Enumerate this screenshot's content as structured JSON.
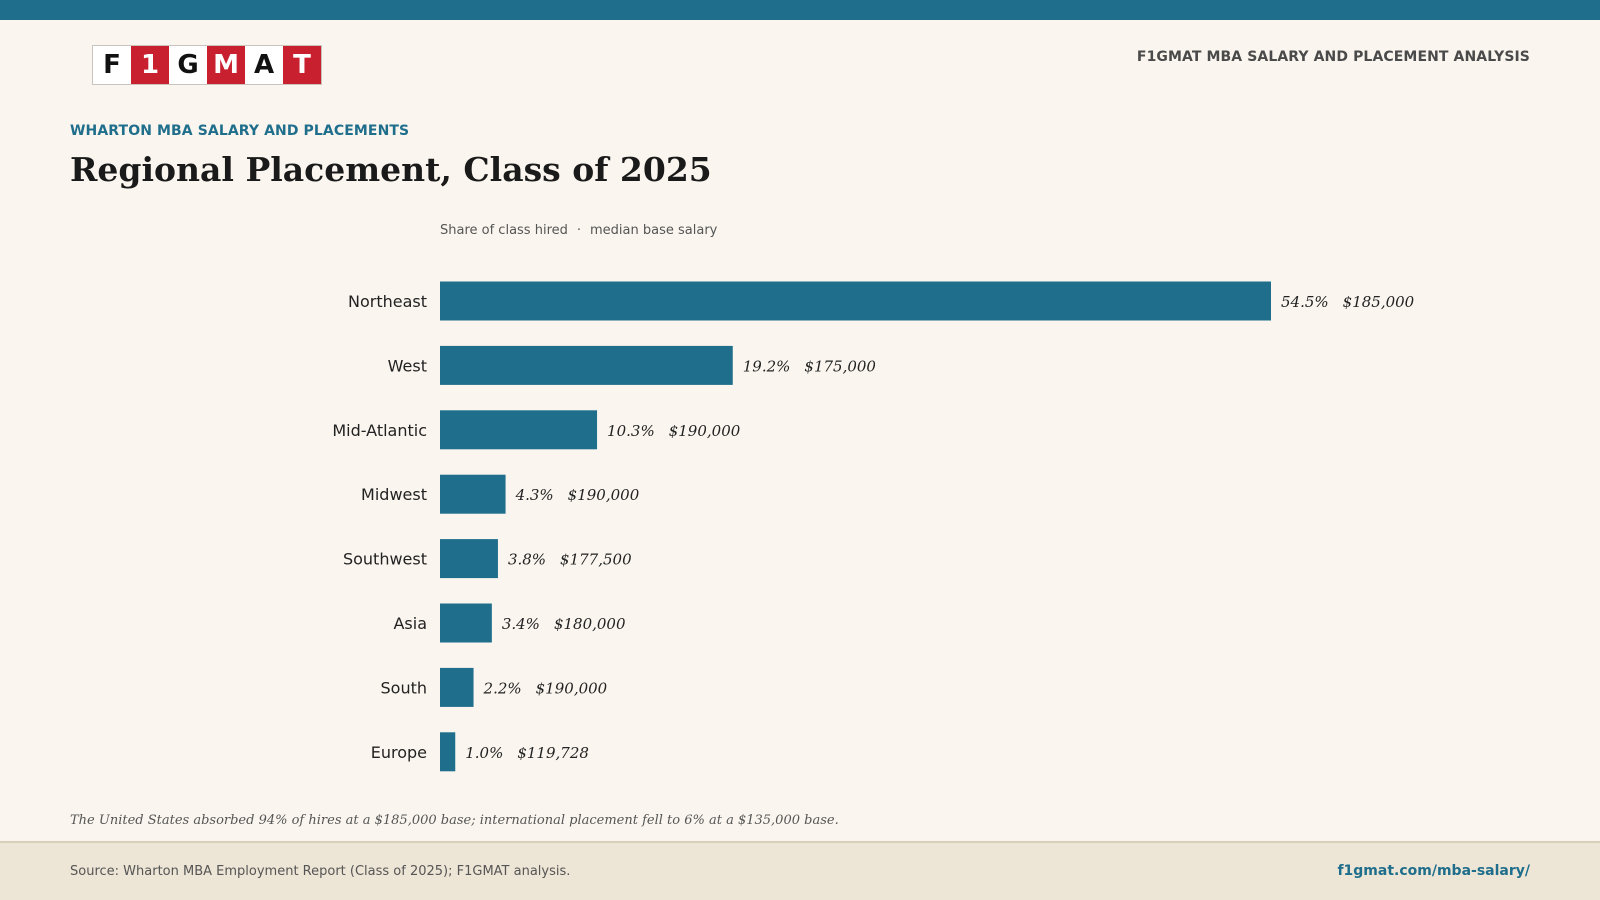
{
  "header": {
    "logo_letters": [
      "F",
      "1",
      "G",
      "M",
      "A",
      "T"
    ],
    "right_label": "F1GMAT MBA SALARY AND PLACEMENT ANALYSIS"
  },
  "kicker": "WHARTON MBA SALARY AND PLACEMENTS",
  "title": "Regional Placement, Class of 2025",
  "legend": {
    "share_label": "Share of class hired",
    "separator": "·",
    "salary_label": "median base salary"
  },
  "chart_data": {
    "type": "bar",
    "orientation": "horizontal",
    "title": "Regional Placement, Class of 2025",
    "categories": [
      "Northeast",
      "West",
      "Mid-Atlantic",
      "Midwest",
      "Southwest",
      "Asia",
      "South",
      "Europe"
    ],
    "series": [
      {
        "name": "Share of class hired",
        "values": [
          54.5,
          19.2,
          10.3,
          4.3,
          3.8,
          3.4,
          2.2,
          1.0
        ]
      },
      {
        "name": "median base salary",
        "values": [
          185000,
          175000,
          190000,
          190000,
          177500,
          180000,
          190000,
          119728
        ]
      }
    ],
    "share_labels": [
      "54.5%",
      "19.2%",
      "10.3%",
      "4.3%",
      "3.8%",
      "3.4%",
      "2.2%",
      "1.0%"
    ],
    "salary_labels": [
      "$185,000",
      "$175,000",
      "$190,000",
      "$190,000",
      "$177,500",
      "$180,000",
      "$190,000",
      "$119,728"
    ],
    "bar_color": "#1f6e8c"
  },
  "note": "The United States absorbed 94% of hires at a $185,000 base; international placement fell to 6% at a $135,000 base.",
  "footer": {
    "source": "Source: Wharton MBA Employment Report (Class of 2025); F1GMAT analysis.",
    "url": "f1gmat.com/mba-salary/"
  },
  "colors": {
    "accent": "#1f6e8c",
    "logo_red": "#c8202f",
    "background": "#faf6ef",
    "footer_background": "#ede5d5"
  }
}
